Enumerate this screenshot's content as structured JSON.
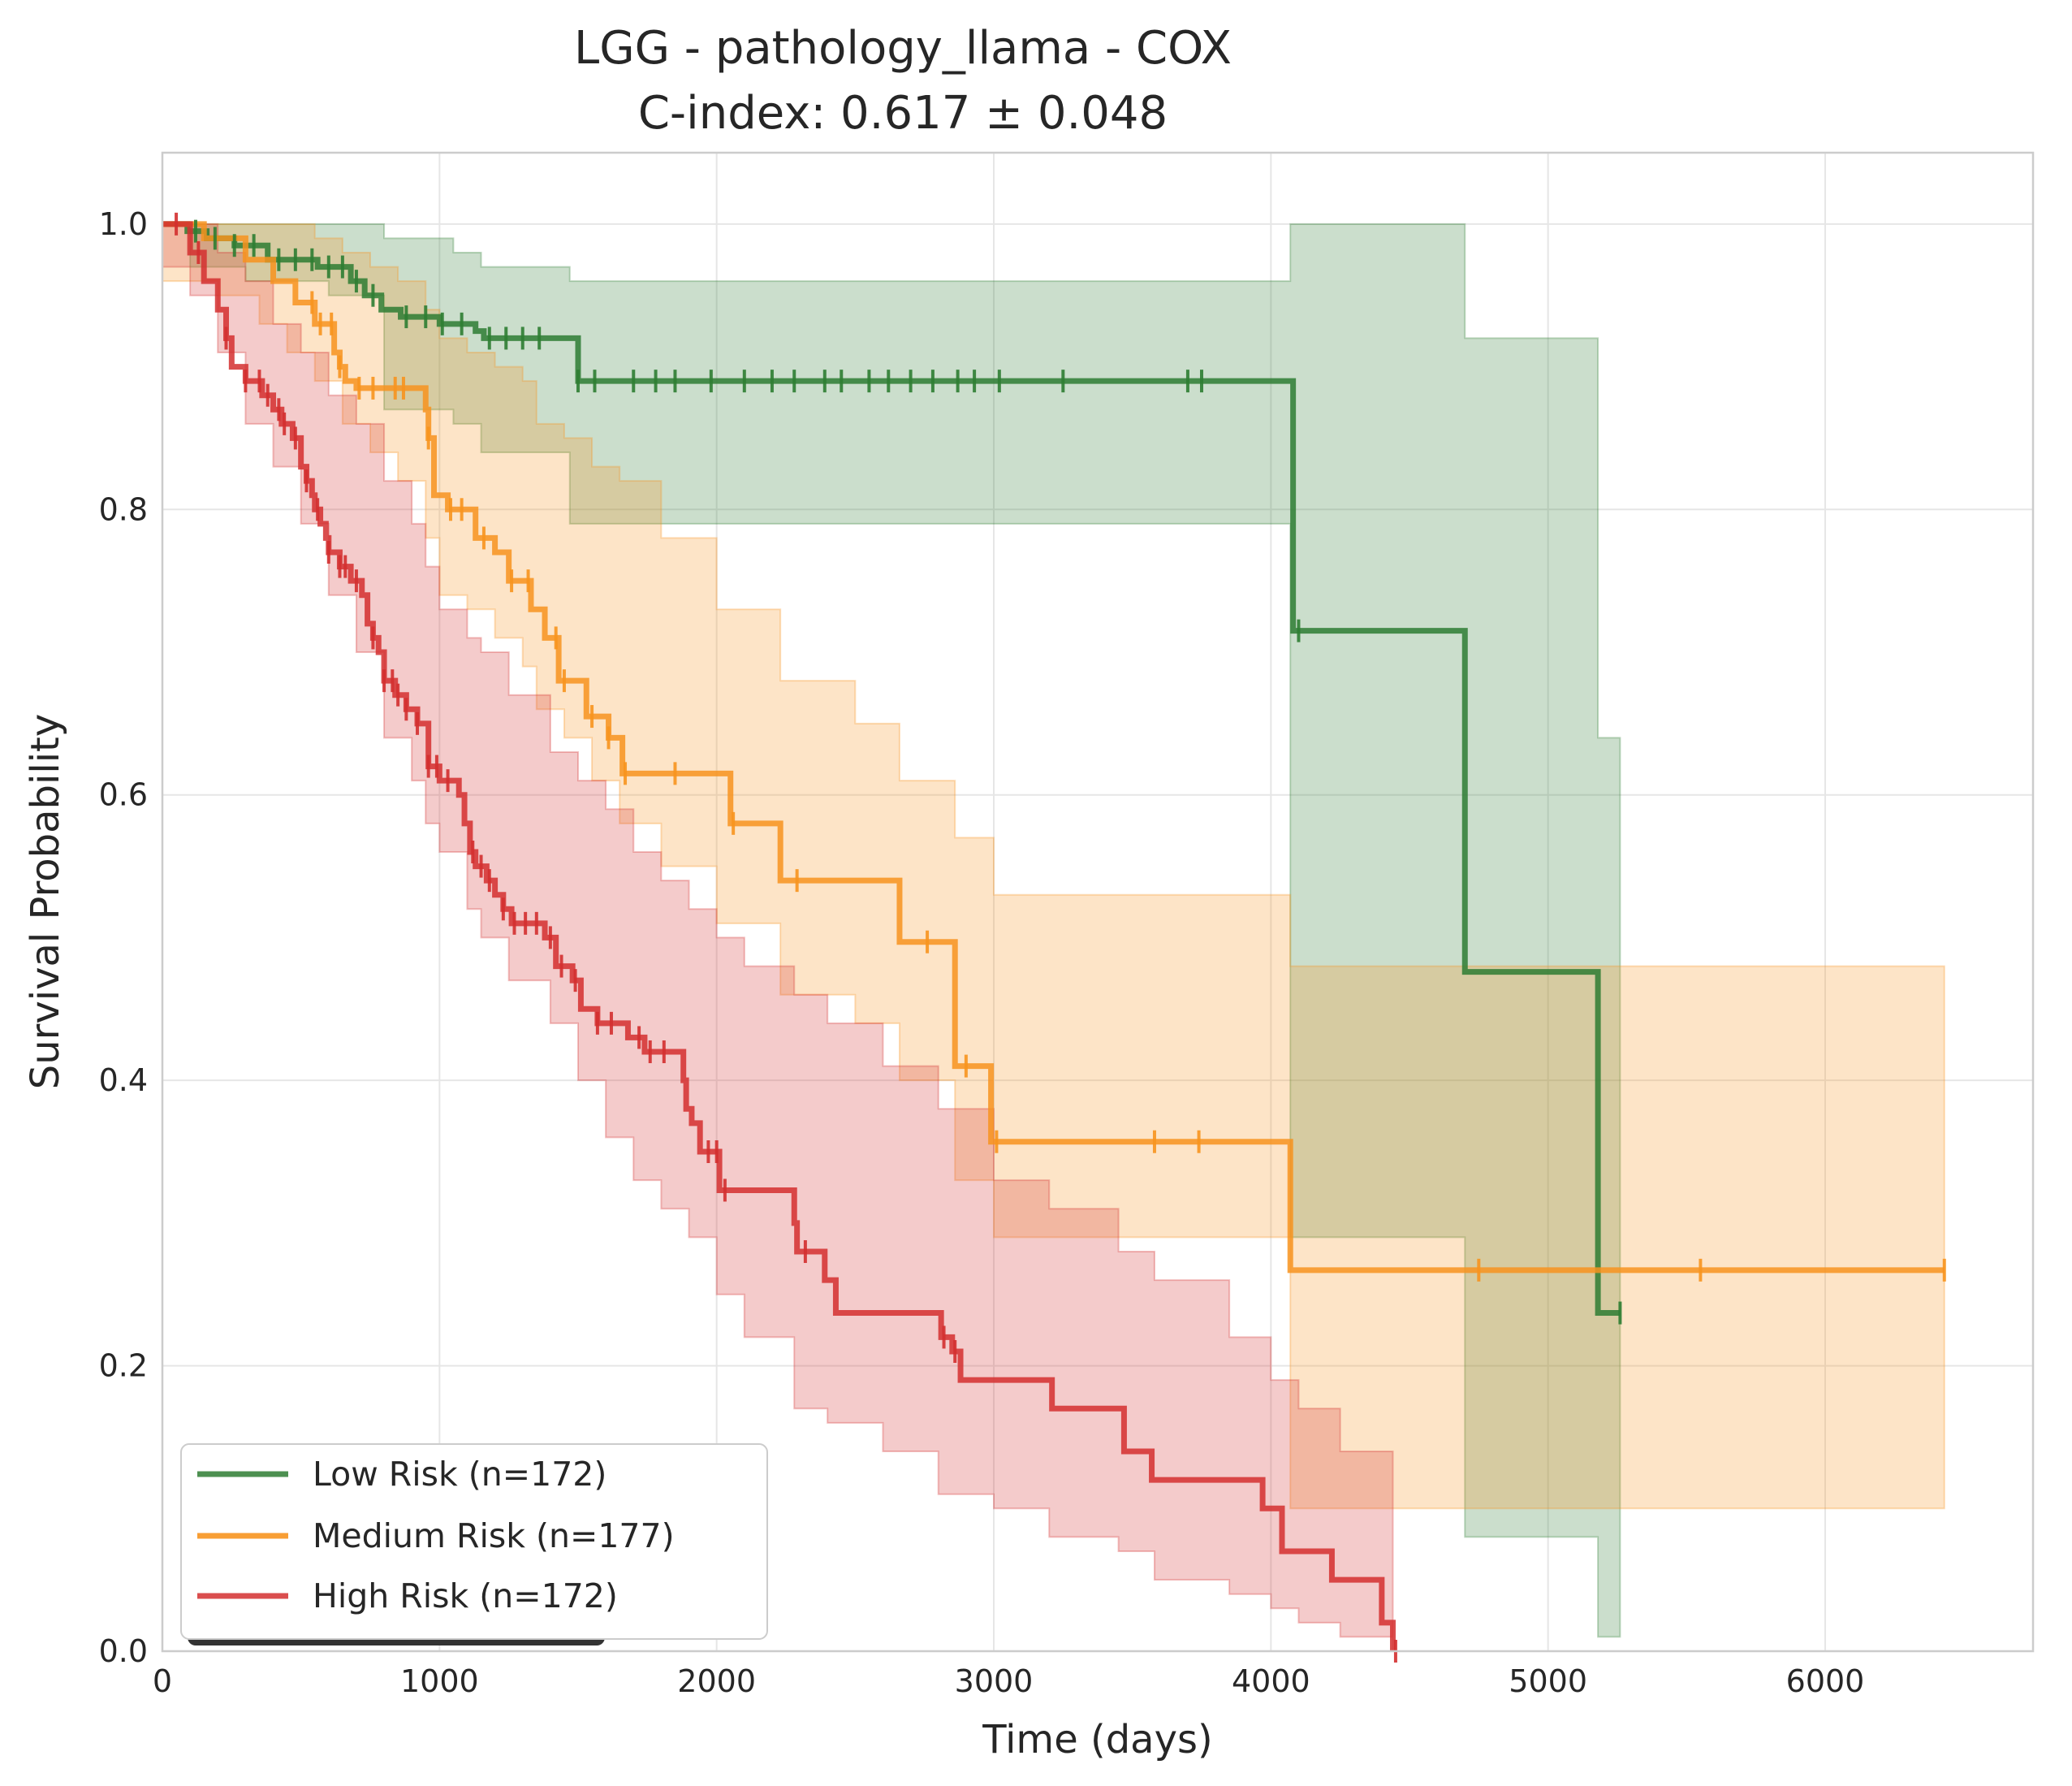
{
  "chart_data": {
    "type": "line",
    "subtype": "kaplan-meier",
    "title": "LGG - pathology_llama - COX",
    "subtitle": "C-index: 0.617 ± 0.048",
    "xlabel": "Time (days)",
    "ylabel": "Survival Probability",
    "xlim": [
      0,
      6750
    ],
    "ylim": [
      0.0,
      1.05
    ],
    "xticks": [
      0,
      1000,
      2000,
      3000,
      4000,
      5000,
      6000
    ],
    "xtick_labels": [
      "0",
      "1000",
      "2000",
      "3000",
      "4000",
      "5000",
      "6000"
    ],
    "yticks": [
      0.0,
      0.2,
      0.4,
      0.6,
      0.8,
      1.0
    ],
    "ytick_labels": [
      "0.0",
      "0.2",
      "0.4",
      "0.6",
      "0.8",
      "1.0"
    ],
    "grid": true,
    "legend_position": "lower-left",
    "series": [
      {
        "name": "Low Risk (n=172)",
        "color": "#2e7d32",
        "steps": [
          [
            0,
            1.0
          ],
          [
            90,
            0.995
          ],
          [
            160,
            0.99
          ],
          [
            260,
            0.985
          ],
          [
            380,
            0.975
          ],
          [
            560,
            0.97
          ],
          [
            680,
            0.96
          ],
          [
            730,
            0.95
          ],
          [
            790,
            0.94
          ],
          [
            860,
            0.935
          ],
          [
            1000,
            0.93
          ],
          [
            1130,
            0.925
          ],
          [
            1160,
            0.92
          ],
          [
            1500,
            0.89
          ],
          [
            4080,
            0.715
          ],
          [
            4700,
            0.476
          ],
          [
            5180,
            0.237
          ],
          [
            5260,
            0.237
          ]
        ],
        "band": [
          [
            0,
            1.0,
            1.0
          ],
          [
            100,
            0.97,
            1.0
          ],
          [
            300,
            0.96,
            1.0
          ],
          [
            600,
            0.95,
            1.0
          ],
          [
            800,
            0.87,
            0.99
          ],
          [
            1050,
            0.86,
            0.98
          ],
          [
            1150,
            0.84,
            0.97
          ],
          [
            1470,
            0.79,
            0.96
          ],
          [
            4070,
            0.29,
            1.0
          ],
          [
            4700,
            0.08,
            0.92
          ],
          [
            5180,
            0.01,
            0.64
          ],
          [
            5260,
            0.01,
            0.64
          ]
        ],
        "censored": [
          120,
          190,
          260,
          330,
          420,
          480,
          540,
          600,
          650,
          700,
          760,
          880,
          950,
          1010,
          1080,
          1180,
          1240,
          1300,
          1360,
          1500,
          1560,
          1700,
          1780,
          1850,
          1980,
          2100,
          2200,
          2280,
          2390,
          2450,
          2550,
          2620,
          2700,
          2780,
          2870,
          2930,
          3020,
          3250,
          3700,
          3750,
          4100,
          5260
        ]
      },
      {
        "name": "Medium Risk (n=177)",
        "color": "#f7931e",
        "steps": [
          [
            0,
            1.0
          ],
          [
            150,
            0.99
          ],
          [
            300,
            0.975
          ],
          [
            400,
            0.96
          ],
          [
            480,
            0.945
          ],
          [
            550,
            0.93
          ],
          [
            620,
            0.91
          ],
          [
            640,
            0.9
          ],
          [
            660,
            0.89
          ],
          [
            700,
            0.885
          ],
          [
            950,
            0.87
          ],
          [
            960,
            0.85
          ],
          [
            980,
            0.81
          ],
          [
            1030,
            0.8
          ],
          [
            1130,
            0.78
          ],
          [
            1200,
            0.77
          ],
          [
            1250,
            0.75
          ],
          [
            1330,
            0.73
          ],
          [
            1380,
            0.71
          ],
          [
            1430,
            0.68
          ],
          [
            1530,
            0.655
          ],
          [
            1610,
            0.64
          ],
          [
            1660,
            0.615
          ],
          [
            2050,
            0.58
          ],
          [
            2230,
            0.54
          ],
          [
            2660,
            0.497
          ],
          [
            2860,
            0.41
          ],
          [
            2990,
            0.357
          ],
          [
            4070,
            0.267
          ],
          [
            6430,
            0.267
          ]
        ],
        "band": [
          [
            0,
            0.96,
            1.0
          ],
          [
            200,
            0.95,
            1.0
          ],
          [
            350,
            0.93,
            1.0
          ],
          [
            450,
            0.91,
            1.0
          ],
          [
            550,
            0.89,
            0.99
          ],
          [
            650,
            0.86,
            0.98
          ],
          [
            750,
            0.84,
            0.97
          ],
          [
            850,
            0.82,
            0.96
          ],
          [
            950,
            0.78,
            0.94
          ],
          [
            1000,
            0.74,
            0.92
          ],
          [
            1100,
            0.73,
            0.91
          ],
          [
            1200,
            0.71,
            0.9
          ],
          [
            1300,
            0.69,
            0.89
          ],
          [
            1350,
            0.66,
            0.86
          ],
          [
            1450,
            0.64,
            0.85
          ],
          [
            1550,
            0.61,
            0.83
          ],
          [
            1650,
            0.58,
            0.82
          ],
          [
            1800,
            0.55,
            0.78
          ],
          [
            2000,
            0.51,
            0.73
          ],
          [
            2230,
            0.46,
            0.68
          ],
          [
            2500,
            0.44,
            0.65
          ],
          [
            2660,
            0.4,
            0.61
          ],
          [
            2860,
            0.33,
            0.57
          ],
          [
            3000,
            0.29,
            0.53
          ],
          [
            4070,
            0.1,
            0.48
          ],
          [
            6430,
            0.1,
            0.48
          ]
        ],
        "censored": [
          540,
          570,
          610,
          640,
          710,
          760,
          840,
          870,
          960,
          1040,
          1080,
          1160,
          1260,
          1320,
          1420,
          1450,
          1550,
          1610,
          1670,
          1850,
          2060,
          2290,
          2760,
          2900,
          3010,
          3580,
          3740,
          4750,
          5550,
          6430
        ]
      },
      {
        "name": "High Risk (n=172)",
        "color": "#d32f2f",
        "steps": [
          [
            0,
            1.0
          ],
          [
            100,
            0.98
          ],
          [
            150,
            0.96
          ],
          [
            200,
            0.94
          ],
          [
            230,
            0.92
          ],
          [
            250,
            0.9
          ],
          [
            300,
            0.89
          ],
          [
            360,
            0.88
          ],
          [
            400,
            0.87
          ],
          [
            430,
            0.86
          ],
          [
            470,
            0.85
          ],
          [
            500,
            0.83
          ],
          [
            520,
            0.82
          ],
          [
            540,
            0.81
          ],
          [
            550,
            0.8
          ],
          [
            570,
            0.79
          ],
          [
            590,
            0.78
          ],
          [
            600,
            0.77
          ],
          [
            640,
            0.76
          ],
          [
            680,
            0.75
          ],
          [
            720,
            0.74
          ],
          [
            740,
            0.72
          ],
          [
            760,
            0.71
          ],
          [
            780,
            0.7
          ],
          [
            800,
            0.68
          ],
          [
            840,
            0.67
          ],
          [
            880,
            0.66
          ],
          [
            920,
            0.65
          ],
          [
            960,
            0.62
          ],
          [
            1000,
            0.61
          ],
          [
            1070,
            0.6
          ],
          [
            1090,
            0.58
          ],
          [
            1110,
            0.56
          ],
          [
            1130,
            0.55
          ],
          [
            1170,
            0.54
          ],
          [
            1200,
            0.53
          ],
          [
            1230,
            0.52
          ],
          [
            1260,
            0.51
          ],
          [
            1380,
            0.5
          ],
          [
            1420,
            0.48
          ],
          [
            1480,
            0.47
          ],
          [
            1510,
            0.45
          ],
          [
            1570,
            0.44
          ],
          [
            1680,
            0.43
          ],
          [
            1740,
            0.42
          ],
          [
            1880,
            0.4
          ],
          [
            1890,
            0.38
          ],
          [
            1910,
            0.37
          ],
          [
            1940,
            0.35
          ],
          [
            2010,
            0.323
          ],
          [
            2280,
            0.3
          ],
          [
            2290,
            0.28
          ],
          [
            2390,
            0.26
          ],
          [
            2430,
            0.237
          ],
          [
            2810,
            0.22
          ],
          [
            2850,
            0.21
          ],
          [
            2880,
            0.19
          ],
          [
            3210,
            0.17
          ],
          [
            3470,
            0.14
          ],
          [
            3570,
            0.12
          ],
          [
            3970,
            0.1
          ],
          [
            4040,
            0.07
          ],
          [
            4220,
            0.05
          ],
          [
            4400,
            0.02
          ],
          [
            4440,
            0.0
          ]
        ],
        "band": [
          [
            0,
            0.97,
            1.0
          ],
          [
            100,
            0.95,
            1.0
          ],
          [
            200,
            0.91,
            0.98
          ],
          [
            300,
            0.86,
            0.96
          ],
          [
            400,
            0.83,
            0.93
          ],
          [
            500,
            0.79,
            0.91
          ],
          [
            600,
            0.74,
            0.88
          ],
          [
            700,
            0.7,
            0.86
          ],
          [
            800,
            0.64,
            0.82
          ],
          [
            900,
            0.61,
            0.79
          ],
          [
            950,
            0.58,
            0.76
          ],
          [
            1000,
            0.56,
            0.73
          ],
          [
            1100,
            0.52,
            0.71
          ],
          [
            1150,
            0.5,
            0.7
          ],
          [
            1250,
            0.47,
            0.67
          ],
          [
            1400,
            0.44,
            0.63
          ],
          [
            1500,
            0.4,
            0.61
          ],
          [
            1600,
            0.36,
            0.59
          ],
          [
            1700,
            0.33,
            0.56
          ],
          [
            1800,
            0.31,
            0.54
          ],
          [
            1900,
            0.29,
            0.52
          ],
          [
            2000,
            0.25,
            0.5
          ],
          [
            2100,
            0.22,
            0.48
          ],
          [
            2280,
            0.17,
            0.46
          ],
          [
            2400,
            0.16,
            0.44
          ],
          [
            2600,
            0.14,
            0.41
          ],
          [
            2800,
            0.11,
            0.38
          ],
          [
            3000,
            0.1,
            0.33
          ],
          [
            3200,
            0.08,
            0.31
          ],
          [
            3450,
            0.07,
            0.28
          ],
          [
            3580,
            0.05,
            0.26
          ],
          [
            3850,
            0.04,
            0.22
          ],
          [
            4000,
            0.03,
            0.19
          ],
          [
            4100,
            0.02,
            0.17
          ],
          [
            4250,
            0.01,
            0.14
          ],
          [
            4440,
            0.0,
            0.1
          ]
        ],
        "censored": [
          50,
          130,
          230,
          300,
          350,
          380,
          420,
          440,
          480,
          520,
          560,
          600,
          640,
          660,
          700,
          760,
          800,
          830,
          850,
          880,
          920,
          960,
          990,
          1030,
          1120,
          1150,
          1180,
          1230,
          1270,
          1310,
          1350,
          1400,
          1440,
          1490,
          1570,
          1620,
          1720,
          1760,
          1810,
          1970,
          2000,
          2030,
          2320,
          2820,
          2860,
          4450
        ]
      }
    ]
  }
}
